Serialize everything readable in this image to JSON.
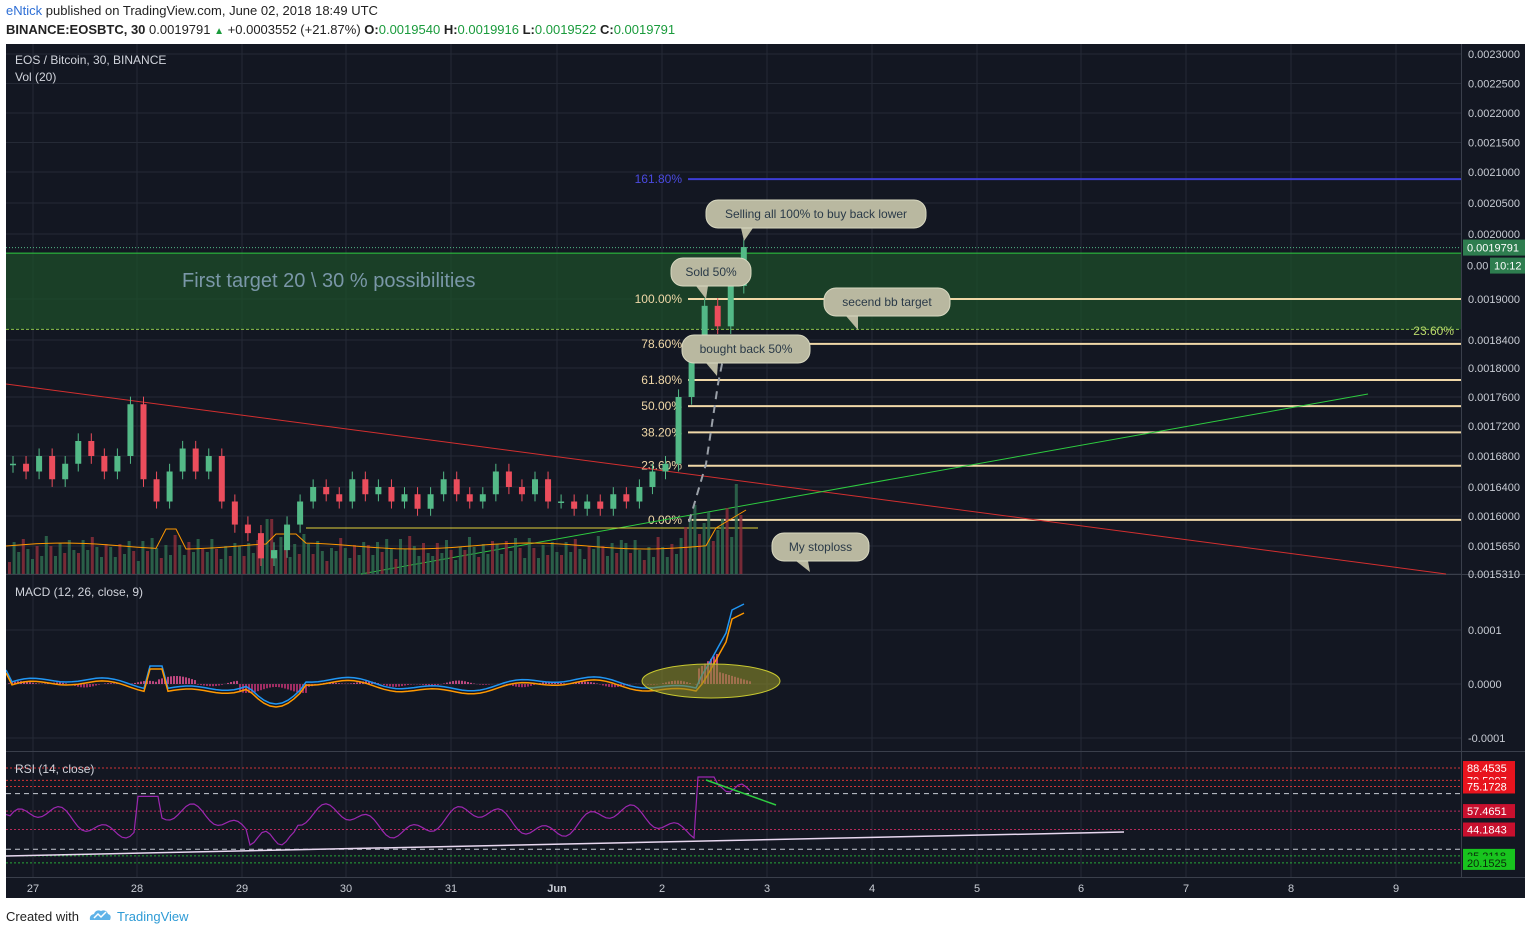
{
  "header": {
    "author": "eNtick",
    "published": "published on TradingView.com, June 02, 2018 18:49 UTC",
    "symbol": "BINANCE:EOSBTC, 30",
    "last": "0.0019791",
    "change": "+0.0003552 (+21.87%)",
    "o_label": "O:",
    "o_value": "0.0019540",
    "h_label": "H:",
    "h_value": "0.0019916",
    "l_label": "L:",
    "l_value": "0.0019522",
    "c_label": "C:",
    "c_value": "0.0019791"
  },
  "footer": {
    "created": "Created with",
    "brand": "TradingView",
    "logo_icon": "tradingview-cloud-icon"
  },
  "colors": {
    "background": "#131722",
    "grid": "#252a36",
    "up": "#53b987",
    "down": "#eb4d5c",
    "fib": "#f0d8a8",
    "fib_ext": "#3d3dd6",
    "trend_red": "#d32f2f",
    "trend_green": "#2ecc40",
    "zone": "#1d4d2a",
    "macd": "#2196f3",
    "signal": "#ff9800",
    "rsi": "#9c27b0"
  },
  "chart_data": [
    {
      "pane": "price",
      "type": "candlestick",
      "title": "EOS / Bitcoin, 30, BINANCE",
      "volume_label": "Vol (20)",
      "x_ticks": [
        "27",
        "28",
        "29",
        "30",
        "31",
        "Jun",
        "2",
        "3",
        "4",
        "5",
        "6",
        "7",
        "8",
        "9"
      ],
      "y_ticks": [
        "0.0023000",
        "0.0022500",
        "0.0022000",
        "0.0021500",
        "0.0021000",
        "0.0020500",
        "0.0020000",
        "0.0018400",
        "0.0018000",
        "0.0017600",
        "0.0017200",
        "0.0016800",
        "0.0016400",
        "0.0016000",
        "0.0015650",
        "0.0015310"
      ],
      "y_tick_values": [
        0.0023,
        0.00225,
        0.0022,
        0.00215,
        0.0021,
        0.00205,
        0.002,
        0.00184,
        0.0018,
        0.00176,
        0.00172,
        0.00168,
        0.00164,
        0.0016,
        0.001565,
        0.001531
      ],
      "ylim": [
        0.001531,
        0.00234
      ],
      "last_price_label": "0.0019791",
      "countdown_label": "10:12",
      "partial_label": "0.00",
      "level_label_19": "0.0019000",
      "fib_levels": [
        {
          "label": "161.80%",
          "price": 0.0020885
        },
        {
          "label": "100.00%",
          "price": 0.0019
        },
        {
          "label": "78.60%",
          "price": 0.0018345
        },
        {
          "label": "61.80%",
          "price": 0.0017835
        },
        {
          "label": "50.00%",
          "price": 0.0017475
        },
        {
          "label": "38.20%",
          "price": 0.0017115
        },
        {
          "label": "23.60%",
          "price": 0.0016675
        },
        {
          "label": "0.00%",
          "price": 0.0015955
        }
      ],
      "zone": {
        "top": 0.0019705,
        "bottom": 0.0018555,
        "text": "First target 20 \\ 30 % possibilities",
        "right_label": "23.60%"
      },
      "annotations": [
        "Selling all 100% to buy back lower",
        "Sold 50%",
        "secend bb target",
        "bought back 50%",
        "My stoploss"
      ],
      "series": [
        {
          "name": "close",
          "values": [
            0.00167,
            0.00166,
            0.00168,
            0.00165,
            0.00167,
            0.0017,
            0.00168,
            0.00166,
            0.00168,
            0.00175,
            0.00165,
            0.00162,
            0.00166,
            0.00169,
            0.00166,
            0.00168,
            0.00162,
            0.00159,
            0.00158,
            0.00155,
            0.00156,
            0.00159,
            0.00162,
            0.00164,
            0.00163,
            0.00162,
            0.00165,
            0.00163,
            0.00164,
            0.00162,
            0.00163,
            0.00161,
            0.00163,
            0.00165,
            0.00163,
            0.00162,
            0.00163,
            0.00166,
            0.00164,
            0.00163,
            0.00165,
            0.00162,
            0.00162,
            0.00161,
            0.00162,
            0.00161,
            0.00163,
            0.00162,
            0.00164,
            0.00166,
            0.00167,
            0.00176,
            0.00183,
            0.00189,
            0.00186,
            0.00192,
            0.00198
          ]
        }
      ]
    },
    {
      "pane": "macd",
      "type": "line",
      "title": "MACD (12, 26, close, 9)",
      "y_ticks": [
        "0.0001",
        "0.0000",
        "-0.0001"
      ],
      "y_tick_values": [
        0.0001,
        0.0,
        -0.0001
      ],
      "ylim": [
        -0.00012,
        0.00013
      ]
    },
    {
      "pane": "rsi",
      "type": "line",
      "title": "RSI (14, close)",
      "levels": [
        "88.4535",
        "79.5997",
        "75.1728",
        "57.4651",
        "44.1843",
        "25.2118",
        "20.1525"
      ],
      "level_values": [
        88.4535,
        79.5997,
        75.1728,
        57.4651,
        44.1843,
        25.2118,
        20.1525
      ],
      "ylim": [
        10,
        100
      ]
    }
  ]
}
